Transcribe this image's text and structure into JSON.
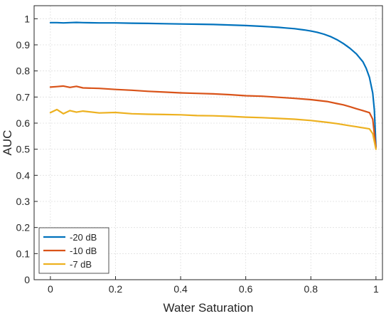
{
  "chart_data": {
    "type": "line",
    "xlabel": "Water Saturation",
    "ylabel": "AUC",
    "xlim": [
      -0.05,
      1.02
    ],
    "ylim": [
      0,
      1.05
    ],
    "xticks": [
      0,
      0.2,
      0.4,
      0.6,
      0.8,
      1
    ],
    "yticks": [
      0,
      0.1,
      0.2,
      0.3,
      0.4,
      0.5,
      0.6,
      0.7,
      0.8,
      0.9,
      1
    ],
    "xtick_labels": [
      "0",
      "0.2",
      "0.4",
      "0.6",
      "0.8",
      "1"
    ],
    "ytick_labels": [
      "0",
      "0.1",
      "0.2",
      "0.3",
      "0.4",
      "0.5",
      "0.6",
      "0.7",
      "0.8",
      "0.9",
      "1"
    ],
    "grid": true,
    "legend_position": "bottom-left",
    "series": [
      {
        "name": "-20 dB",
        "color": "#0072BD",
        "x": [
          0,
          0.02,
          0.04,
          0.06,
          0.08,
          0.1,
          0.15,
          0.2,
          0.25,
          0.3,
          0.35,
          0.4,
          0.45,
          0.5,
          0.55,
          0.6,
          0.65,
          0.7,
          0.72,
          0.75,
          0.78,
          0.8,
          0.82,
          0.84,
          0.86,
          0.88,
          0.9,
          0.92,
          0.94,
          0.96,
          0.97,
          0.98,
          0.99,
          0.995,
          1.0
        ],
        "y": [
          0.985,
          0.985,
          0.984,
          0.985,
          0.986,
          0.985,
          0.984,
          0.984,
          0.983,
          0.982,
          0.981,
          0.98,
          0.979,
          0.978,
          0.976,
          0.974,
          0.971,
          0.967,
          0.965,
          0.962,
          0.957,
          0.953,
          0.948,
          0.941,
          0.932,
          0.92,
          0.905,
          0.887,
          0.865,
          0.835,
          0.81,
          0.775,
          0.715,
          0.65,
          0.51
        ]
      },
      {
        "name": "-10 dB",
        "color": "#D95319",
        "x": [
          0,
          0.02,
          0.04,
          0.06,
          0.08,
          0.1,
          0.15,
          0.2,
          0.25,
          0.3,
          0.35,
          0.4,
          0.45,
          0.5,
          0.55,
          0.6,
          0.65,
          0.7,
          0.75,
          0.8,
          0.85,
          0.88,
          0.9,
          0.92,
          0.94,
          0.96,
          0.98,
          0.99,
          1.0
        ],
        "y": [
          0.738,
          0.74,
          0.742,
          0.737,
          0.741,
          0.735,
          0.733,
          0.729,
          0.726,
          0.722,
          0.719,
          0.716,
          0.714,
          0.712,
          0.709,
          0.705,
          0.703,
          0.699,
          0.695,
          0.69,
          0.683,
          0.675,
          0.67,
          0.663,
          0.655,
          0.648,
          0.64,
          0.615,
          0.505
        ]
      },
      {
        "name": "-7 dB",
        "color": "#EDB120",
        "x": [
          0,
          0.02,
          0.04,
          0.06,
          0.08,
          0.1,
          0.15,
          0.2,
          0.25,
          0.3,
          0.35,
          0.4,
          0.45,
          0.5,
          0.55,
          0.6,
          0.65,
          0.7,
          0.75,
          0.8,
          0.85,
          0.88,
          0.9,
          0.92,
          0.94,
          0.96,
          0.98,
          0.99,
          1.0
        ],
        "y": [
          0.64,
          0.652,
          0.636,
          0.648,
          0.642,
          0.646,
          0.639,
          0.641,
          0.636,
          0.634,
          0.633,
          0.632,
          0.629,
          0.628,
          0.626,
          0.623,
          0.621,
          0.618,
          0.615,
          0.61,
          0.603,
          0.598,
          0.594,
          0.59,
          0.586,
          0.582,
          0.578,
          0.56,
          0.5
        ]
      }
    ]
  }
}
